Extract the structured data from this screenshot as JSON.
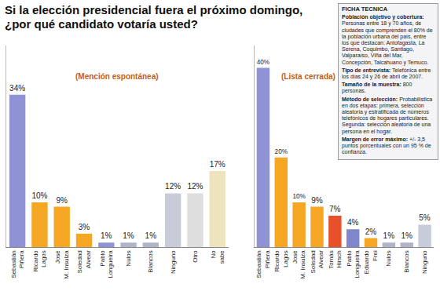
{
  "title": "Si la elección presidencial fuera el próximo domingo, ¿por qué candidato votaría usted?",
  "ficha_tecnica": {
    "title": "FICHA TECNICA",
    "items": [
      {
        "label": "Población objetivo y cobertura:",
        "text": "Personas entre 18 y 70 años, de ciudades que comprenden el 80% de la población urbana del país, entre los que destacan: Antofagasta, La Serena, Coquimbo, Santiago, Valparaíso, Viña del Mar, Concepción, Talcahuano y Temuco."
      },
      {
        "label": "Tipo de entrevista:",
        "text": "Telefónica entre los días 24 y 26 de abril de 2007."
      },
      {
        "label": "Tamaño de la muestra:",
        "text": "800 personas."
      },
      {
        "label": "Método de selección:",
        "text": "Probabilística en dos etapas: primera, selección aleatoria y estratificada de números telefónicos de hogares particulares. Segunda: selección aleatoria de una persona en el hogar."
      },
      {
        "label": "Margen de error máximo:",
        "text": "+/- 3,5 puntos porcentuales con un 95 % de confianza."
      }
    ]
  },
  "chart_data": [
    {
      "type": "bar",
      "title": "(Mención espontánea)",
      "categories": [
        "Sebastián Piñera",
        "Ricardo Lagos",
        "José M. Insulza",
        "Soledad Alvear",
        "Pablo Longueira",
        "Nulos",
        "Blancos",
        "Ninguno",
        "Otro",
        "No sabe"
      ],
      "values": [
        34,
        10,
        9,
        3,
        1,
        1,
        1,
        12,
        12,
        17
      ],
      "value_labels": [
        "34%",
        "10%",
        "9%",
        "3%",
        "1%",
        "1%",
        "1%",
        "12%",
        "12%",
        "17%"
      ],
      "colors": [
        "#8f93d6",
        "#f5a623",
        "#f5a623",
        "#f5a623",
        "#8f93d6",
        "#b0b4c8",
        "#b0b4c8",
        "#c8cbd8",
        "#dedede",
        "#ede3bd"
      ],
      "ylim": [
        0,
        45
      ],
      "data_labels": true,
      "tick_labels": "x",
      "grid": false
    },
    {
      "type": "bar",
      "title": "(Lista cerrada)",
      "categories": [
        "Sebastián Piñera",
        "Ricardo Lagos",
        "José M. Insulza",
        "Soledad Alvear",
        "Tomás Hirsch",
        "Pablo Longueira",
        "Eduardo Frei",
        "Nulos",
        "Blancos",
        "Ninguno"
      ],
      "values": [
        40,
        20,
        10,
        9,
        7,
        4,
        2,
        1,
        1,
        5
      ],
      "value_labels": [
        "40%",
        "20%",
        "10%",
        "9%",
        "7%",
        "4%",
        "2%",
        "1%",
        "1%",
        "5%"
      ],
      "colors": [
        "#8f93d6",
        "#f5a623",
        "#f5a623",
        "#f5a623",
        "#e8502a",
        "#7f86c9",
        "#f5a623",
        "#b0b4c8",
        "#b0b4c8",
        "#c8cbd8"
      ],
      "ylim": [
        0,
        45
      ],
      "data_labels": true,
      "tick_labels": "x",
      "grid": false
    }
  ]
}
